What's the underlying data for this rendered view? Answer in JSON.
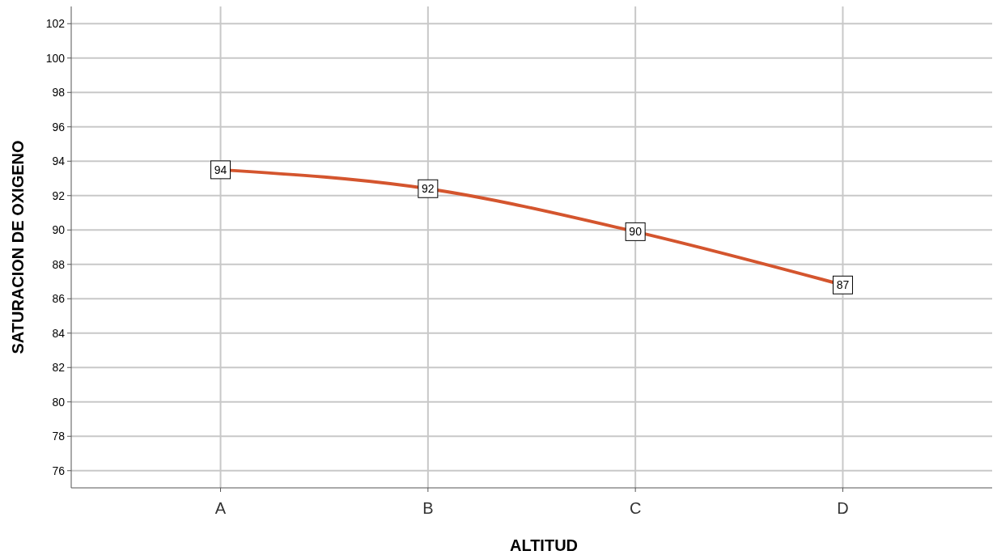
{
  "chart_data": {
    "type": "line",
    "xlabel": "ALTITUD",
    "ylabel": "SATURACION DE OXIGENO",
    "categories": [
      "A",
      "B",
      "C",
      "D"
    ],
    "series": [
      {
        "color": "#d4552e",
        "marker": "square",
        "values": [
          93.5,
          92.4,
          89.9,
          86.8
        ],
        "value_labels": [
          "94",
          "92",
          "90",
          "87"
        ]
      }
    ],
    "ylim": [
      75,
      103
    ],
    "yticks": [
      76,
      78,
      80,
      82,
      84,
      86,
      88,
      90,
      92,
      94,
      96,
      98,
      100,
      102
    ],
    "grid": true
  }
}
